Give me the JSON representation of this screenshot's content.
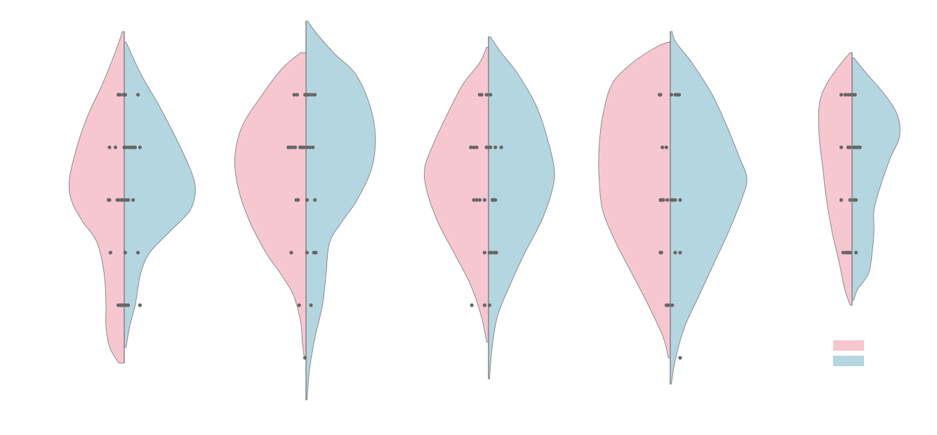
{
  "colors": {
    "left_half": "#f7c7d1",
    "right_half": "#b4d6e0",
    "outline": "#8a8a8a",
    "center_line": "#777777",
    "points": "#666666"
  },
  "chart_data": {
    "type": "violin",
    "split": true,
    "title": "",
    "xlabel": "",
    "ylabel": "",
    "grid": false,
    "y_range": [
      0.2,
      7.4
    ],
    "point_levels": [
      1,
      2,
      3,
      4,
      5,
      6
    ],
    "categories": [
      "",
      "",
      "",
      "",
      ""
    ],
    "legend": {
      "placement": "bottom-right",
      "entries": [
        "",
        ""
      ]
    },
    "groups": [
      {
        "left": {
          "extent": [
            0.9,
            7.2
          ],
          "density": [
            [
              0.9,
              0.3
            ],
            [
              1.2,
              0.8
            ],
            [
              1.6,
              1.0
            ],
            [
              2.0,
              1.0
            ],
            [
              2.6,
              1.1
            ],
            [
              3.2,
              1.5
            ],
            [
              3.6,
              2.3
            ],
            [
              4.0,
              2.9
            ],
            [
              4.4,
              3.0
            ],
            [
              5.0,
              2.6
            ],
            [
              5.6,
              2.0
            ],
            [
              6.2,
              1.2
            ],
            [
              6.8,
              0.5
            ],
            [
              7.2,
              0.1
            ]
          ],
          "points": [
            {
              "level": 6,
              "offsets": [
                -0.3,
                -0.22,
                -0.05,
                0.05
              ]
            },
            {
              "level": 5,
              "offsets": [
                -0.75,
                -0.45,
                0
              ]
            },
            {
              "level": 4,
              "offsets": [
                -0.8,
                -0.75,
                -0.35,
                -0.25,
                -0.15,
                -0.05
              ]
            },
            {
              "level": 3,
              "offsets": [
                -0.7
              ]
            },
            {
              "level": 2,
              "offsets": [
                -0.3,
                -0.2,
                -0.12,
                -0.05
              ]
            }
          ]
        },
        "right": {
          "extent": [
            1.2,
            7.0
          ],
          "density": [
            [
              1.2,
              0.1
            ],
            [
              1.6,
              0.3
            ],
            [
              2.0,
              0.6
            ],
            [
              2.6,
              0.9
            ],
            [
              3.0,
              1.4
            ],
            [
              3.4,
              2.5
            ],
            [
              3.8,
              3.6
            ],
            [
              4.2,
              3.9
            ],
            [
              4.6,
              3.6
            ],
            [
              5.2,
              2.8
            ],
            [
              5.8,
              1.9
            ],
            [
              6.4,
              0.9
            ],
            [
              7.0,
              0.1
            ]
          ],
          "points": [
            {
              "level": 6,
              "offsets": [
                0.05,
                0.7
              ]
            },
            {
              "level": 5,
              "offsets": [
                0.1,
                0.25,
                0.35,
                0.45,
                0.55,
                0.8
              ]
            },
            {
              "level": 4,
              "offsets": [
                0.1,
                0.2,
                0.45
              ]
            },
            {
              "level": 3,
              "offsets": [
                0.05,
                0.7
              ]
            },
            {
              "level": 2,
              "offsets": [
                0.1,
                0.2,
                0.8
              ]
            }
          ]
        }
      },
      {
        "left": {
          "extent": [
            1.0,
            6.8
          ],
          "density": [
            [
              1.0,
              0.1
            ],
            [
              1.3,
              0.2
            ],
            [
              1.7,
              0.3
            ],
            [
              2.2,
              0.7
            ],
            [
              2.6,
              1.4
            ],
            [
              3.0,
              2.2
            ],
            [
              3.6,
              3.1
            ],
            [
              4.2,
              3.7
            ],
            [
              4.8,
              3.9
            ],
            [
              5.4,
              3.5
            ],
            [
              6.0,
              2.4
            ],
            [
              6.5,
              1.3
            ],
            [
              6.8,
              0.3
            ]
          ],
          "points": [
            {
              "level": 6,
              "offsets": [
                -0.6,
                -0.45,
                -0.05
              ]
            },
            {
              "level": 5,
              "offsets": [
                -0.9,
                -0.8,
                -0.7,
                -0.55,
                -0.3,
                -0.2,
                -0.1
              ]
            },
            {
              "level": 4,
              "offsets": [
                -0.5,
                -0.4
              ]
            },
            {
              "level": 3,
              "offsets": [
                -0.75
              ]
            },
            {
              "level": 2,
              "offsets": [
                -0.35
              ]
            },
            {
              "level": 1,
              "offsets": [
                -0.05
              ]
            }
          ]
        },
        "right": {
          "extent": [
            0.2,
            7.4
          ],
          "density": [
            [
              0.2,
              0.05
            ],
            [
              0.8,
              0.2
            ],
            [
              1.4,
              0.5
            ],
            [
              2.0,
              0.9
            ],
            [
              2.6,
              1.1
            ],
            [
              3.2,
              1.3
            ],
            [
              3.6,
              2.0
            ],
            [
              4.0,
              2.8
            ],
            [
              4.6,
              3.6
            ],
            [
              5.2,
              3.8
            ],
            [
              5.8,
              3.5
            ],
            [
              6.4,
              2.7
            ],
            [
              6.8,
              1.5
            ],
            [
              7.2,
              0.5
            ],
            [
              7.4,
              0.1
            ]
          ],
          "points": [
            {
              "level": 6,
              "offsets": [
                0.05,
                0.15,
                0.3,
                0.45
              ]
            },
            {
              "level": 5,
              "offsets": [
                0.05,
                0.2,
                0.35
              ]
            },
            {
              "level": 4,
              "offsets": [
                0.05,
                0.45
              ]
            },
            {
              "level": 3,
              "offsets": [
                0.05,
                0.4,
                0.5
              ]
            },
            {
              "level": 2,
              "offsets": [
                0.25
              ]
            }
          ]
        }
      },
      {
        "left": {
          "extent": [
            1.3,
            6.9
          ],
          "density": [
            [
              1.3,
              0.1
            ],
            [
              1.8,
              0.4
            ],
            [
              2.4,
              1.0
            ],
            [
              3.0,
              1.9
            ],
            [
              3.6,
              2.8
            ],
            [
              4.2,
              3.4
            ],
            [
              4.6,
              3.5
            ],
            [
              5.0,
              3.1
            ],
            [
              5.6,
              2.3
            ],
            [
              6.2,
              1.4
            ],
            [
              6.6,
              0.5
            ],
            [
              6.9,
              0.1
            ]
          ],
          "points": [
            {
              "level": 6,
              "offsets": [
                -0.45,
                -0.35,
                -0.1
              ]
            },
            {
              "level": 5,
              "offsets": [
                -0.9,
                -0.75,
                -0.6,
                -0.1
              ]
            },
            {
              "level": 4,
              "offsets": [
                -0.75,
                -0.6,
                -0.45,
                -0.2
              ]
            },
            {
              "level": 3,
              "offsets": [
                -0.2
              ]
            },
            {
              "level": 2,
              "offsets": [
                -0.85,
                -0.2
              ]
            }
          ]
        },
        "right": {
          "extent": [
            0.6,
            7.1
          ],
          "density": [
            [
              0.6,
              0.05
            ],
            [
              1.2,
              0.2
            ],
            [
              1.8,
              0.5
            ],
            [
              2.4,
              1.2
            ],
            [
              3.0,
              2.0
            ],
            [
              3.6,
              2.9
            ],
            [
              4.2,
              3.5
            ],
            [
              4.6,
              3.6
            ],
            [
              5.2,
              3.2
            ],
            [
              5.8,
              2.6
            ],
            [
              6.4,
              1.6
            ],
            [
              6.8,
              0.7
            ],
            [
              7.1,
              0.1
            ]
          ],
          "points": [
            {
              "level": 6,
              "offsets": [
                0.1
              ]
            },
            {
              "level": 5,
              "offsets": [
                0.05,
                0.1,
                0.35,
                0.65
              ]
            },
            {
              "level": 4,
              "offsets": [
                0.2,
                0.3,
                0.35
              ]
            },
            {
              "level": 3,
              "offsets": [
                0.05,
                0.15,
                0.3,
                0.4
              ]
            },
            {
              "level": 2,
              "offsets": [
                0.05
              ]
            }
          ]
        }
      },
      {
        "left": {
          "extent": [
            1.0,
            7.0
          ],
          "density": [
            [
              1.0,
              0.1
            ],
            [
              1.4,
              0.4
            ],
            [
              2.0,
              1.2
            ],
            [
              2.6,
              2.1
            ],
            [
              3.2,
              3.0
            ],
            [
              3.8,
              3.7
            ],
            [
              4.4,
              3.9
            ],
            [
              5.0,
              3.9
            ],
            [
              5.6,
              3.7
            ],
            [
              6.2,
              3.2
            ],
            [
              6.6,
              2.1
            ],
            [
              6.9,
              0.8
            ],
            [
              7.0,
              0.1
            ]
          ],
          "points": [
            {
              "level": 6,
              "offsets": [
                -0.55,
                -0.5
              ]
            },
            {
              "level": 5,
              "offsets": [
                -0.4,
                -0.2
              ]
            },
            {
              "level": 4,
              "offsets": [
                -0.5,
                -0.4,
                -0.35,
                -0.15
              ]
            },
            {
              "level": 3,
              "offsets": [
                -0.5,
                -0.45
              ]
            },
            {
              "level": 2,
              "offsets": [
                -0.2,
                -0.1
              ]
            }
          ]
        },
        "right": {
          "extent": [
            0.5,
            7.2
          ],
          "density": [
            [
              0.5,
              0.05
            ],
            [
              1.0,
              0.3
            ],
            [
              1.6,
              0.8
            ],
            [
              2.2,
              1.6
            ],
            [
              2.8,
              2.4
            ],
            [
              3.4,
              3.2
            ],
            [
              4.0,
              3.9
            ],
            [
              4.4,
              4.2
            ],
            [
              4.8,
              3.8
            ],
            [
              5.4,
              3.1
            ],
            [
              6.0,
              2.3
            ],
            [
              6.6,
              1.2
            ],
            [
              7.0,
              0.3
            ],
            [
              7.2,
              0.1
            ]
          ],
          "points": [
            {
              "level": 6,
              "offsets": [
                0.05,
                0.25,
                0.35,
                0.45
              ]
            },
            {
              "level": 4,
              "offsets": [
                0.05,
                0.15,
                0.25,
                0.5
              ]
            },
            {
              "level": 3,
              "offsets": [
                0.25,
                0.5
              ]
            },
            {
              "level": 2,
              "offsets": [
                0.1
              ]
            },
            {
              "level": 1,
              "offsets": [
                0.5
              ]
            }
          ]
        }
      },
      {
        "left": {
          "extent": [
            2.0,
            6.8
          ],
          "density": [
            [
              2.0,
              0.1
            ],
            [
              2.3,
              0.4
            ],
            [
              2.8,
              0.7
            ],
            [
              3.4,
              1.1
            ],
            [
              4.0,
              1.4
            ],
            [
              4.6,
              1.6
            ],
            [
              5.2,
              1.8
            ],
            [
              5.8,
              1.8
            ],
            [
              6.2,
              1.4
            ],
            [
              6.6,
              0.6
            ],
            [
              6.8,
              0.1
            ]
          ],
          "points": [
            {
              "level": 6,
              "offsets": [
                -0.55,
                -0.35,
                -0.2,
                -0.05
              ]
            },
            {
              "level": 5,
              "offsets": [
                -0.55,
                -0.2,
                -0.1
              ]
            },
            {
              "level": 4,
              "offsets": [
                -0.55,
                -0.1
              ]
            },
            {
              "level": 3,
              "offsets": [
                -0.45,
                -0.3,
                -0.2,
                -0.1
              ]
            }
          ]
        },
        "right": {
          "extent": [
            2.1,
            6.7
          ],
          "density": [
            [
              2.1,
              0.1
            ],
            [
              2.3,
              0.3
            ],
            [
              2.6,
              0.9
            ],
            [
              3.0,
              1.1
            ],
            [
              3.4,
              1.2
            ],
            [
              3.8,
              1.2
            ],
            [
              4.2,
              1.5
            ],
            [
              4.8,
              2.1
            ],
            [
              5.2,
              2.6
            ],
            [
              5.6,
              2.5
            ],
            [
              6.0,
              1.8
            ],
            [
              6.4,
              0.8
            ],
            [
              6.7,
              0.1
            ]
          ],
          "points": [
            {
              "level": 6,
              "offsets": [
                0.1,
                0.15
              ]
            },
            {
              "level": 5,
              "offsets": [
                0.1,
                0.2,
                0.3,
                0.4
              ]
            },
            {
              "level": 4,
              "offsets": [
                0.1,
                0.2
              ]
            },
            {
              "level": 3,
              "offsets": [
                0.2
              ]
            }
          ]
        }
      }
    ]
  }
}
